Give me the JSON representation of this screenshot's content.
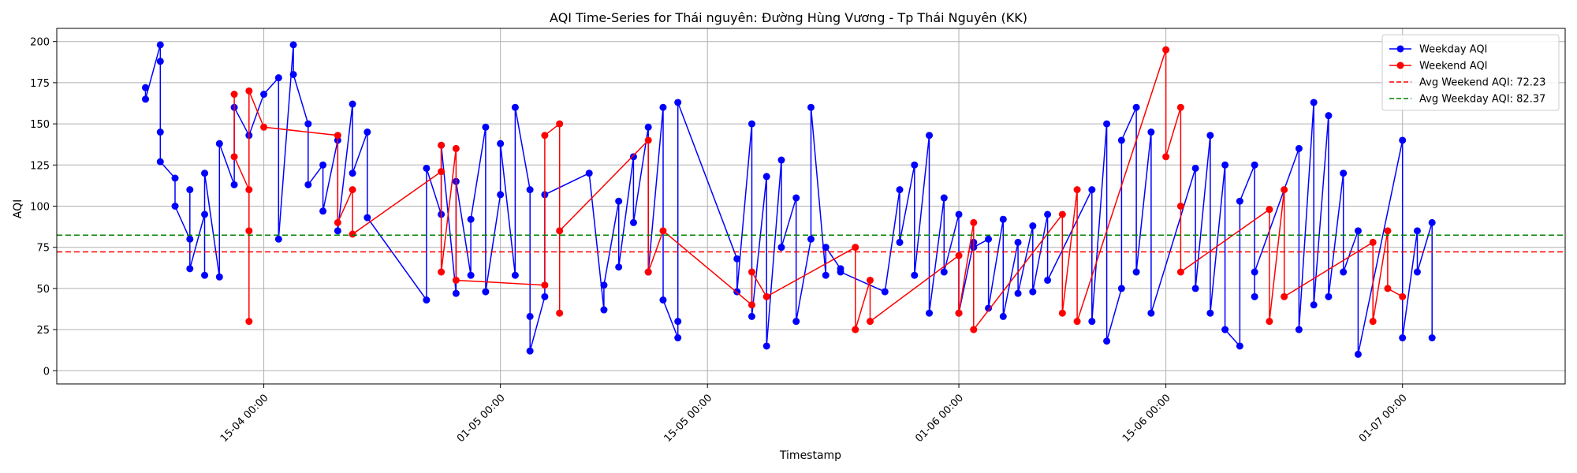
{
  "chart_data": {
    "type": "line",
    "title": "AQI Time-Series for Thái nguyên: Đường Hùng Vương - Tp Thái Nguyên (KK)",
    "xlabel": "Timestamp",
    "ylabel": "AQI",
    "xlim": [
      "2024-04-01",
      "2024-07-12"
    ],
    "ylim": [
      -8,
      208
    ],
    "x_ticks": [
      "15-04 00:00",
      "01-05 00:00",
      "15-05 00:00",
      "01-06 00:00",
      "15-06 00:00",
      "01-07 00:00"
    ],
    "x_tick_dates": [
      "2024-04-15",
      "2024-05-01",
      "2024-05-15",
      "2024-06-01",
      "2024-06-15",
      "2024-07-01"
    ],
    "y_ticks": [
      0,
      25,
      50,
      75,
      100,
      125,
      150,
      175,
      200
    ],
    "grid": true,
    "legend_position": "top-right",
    "series": [
      {
        "name": "Weekday AQI",
        "color": "#0000ff",
        "points": [
          [
            "2024-04-07",
            172
          ],
          [
            "2024-04-07",
            165
          ],
          [
            "2024-04-08",
            198
          ],
          [
            "2024-04-08",
            188
          ],
          [
            "2024-04-08",
            145
          ],
          [
            "2024-04-08",
            127
          ],
          [
            "2024-04-09",
            117
          ],
          [
            "2024-04-09",
            100
          ],
          [
            "2024-04-10",
            80
          ],
          [
            "2024-04-10",
            110
          ],
          [
            "2024-04-10",
            62
          ],
          [
            "2024-04-11",
            95
          ],
          [
            "2024-04-11",
            58
          ],
          [
            "2024-04-11",
            120
          ],
          [
            "2024-04-12",
            57
          ],
          [
            "2024-04-12",
            138
          ],
          [
            "2024-04-13",
            113
          ],
          [
            "2024-04-13",
            160
          ],
          [
            "2024-04-14",
            143
          ],
          [
            "2024-04-15",
            168
          ],
          [
            "2024-04-16",
            178
          ],
          [
            "2024-04-16",
            80
          ],
          [
            "2024-04-17",
            198
          ],
          [
            "2024-04-17",
            180
          ],
          [
            "2024-04-18",
            150
          ],
          [
            "2024-04-18",
            113
          ],
          [
            "2024-04-19",
            125
          ],
          [
            "2024-04-19",
            97
          ],
          [
            "2024-04-20",
            140
          ],
          [
            "2024-04-20",
            85
          ],
          [
            "2024-04-21",
            162
          ],
          [
            "2024-04-21",
            120
          ],
          [
            "2024-04-22",
            145
          ],
          [
            "2024-04-22",
            93
          ],
          [
            "2024-04-26",
            43
          ],
          [
            "2024-04-26",
            123
          ],
          [
            "2024-04-27",
            95
          ],
          [
            "2024-04-27",
            137
          ],
          [
            "2024-04-28",
            47
          ],
          [
            "2024-04-28",
            115
          ],
          [
            "2024-04-29",
            58
          ],
          [
            "2024-04-29",
            92
          ],
          [
            "2024-04-30",
            148
          ],
          [
            "2024-04-30",
            48
          ],
          [
            "2024-05-01",
            107
          ],
          [
            "2024-05-01",
            138
          ],
          [
            "2024-05-02",
            58
          ],
          [
            "2024-05-02",
            160
          ],
          [
            "2024-05-03",
            110
          ],
          [
            "2024-05-03",
            33
          ],
          [
            "2024-05-03",
            12
          ],
          [
            "2024-05-04",
            45
          ],
          [
            "2024-05-04",
            107
          ],
          [
            "2024-05-07",
            120
          ],
          [
            "2024-05-08",
            37
          ],
          [
            "2024-05-08",
            52
          ],
          [
            "2024-05-09",
            103
          ],
          [
            "2024-05-09",
            63
          ],
          [
            "2024-05-10",
            130
          ],
          [
            "2024-05-10",
            90
          ],
          [
            "2024-05-11",
            148
          ],
          [
            "2024-05-11",
            60
          ],
          [
            "2024-05-12",
            160
          ],
          [
            "2024-05-12",
            43
          ],
          [
            "2024-05-13",
            20
          ],
          [
            "2024-05-13",
            30
          ],
          [
            "2024-05-13",
            163
          ],
          [
            "2024-05-17",
            68
          ],
          [
            "2024-05-17",
            48
          ],
          [
            "2024-05-18",
            150
          ],
          [
            "2024-05-18",
            33
          ],
          [
            "2024-05-19",
            118
          ],
          [
            "2024-05-19",
            15
          ],
          [
            "2024-05-20",
            128
          ],
          [
            "2024-05-20",
            75
          ],
          [
            "2024-05-21",
            105
          ],
          [
            "2024-05-21",
            30
          ],
          [
            "2024-05-22",
            80
          ],
          [
            "2024-05-22",
            160
          ],
          [
            "2024-05-23",
            58
          ],
          [
            "2024-05-23",
            75
          ],
          [
            "2024-05-24",
            62
          ],
          [
            "2024-05-24",
            60
          ],
          [
            "2024-05-27",
            48
          ],
          [
            "2024-05-28",
            110
          ],
          [
            "2024-05-28",
            78
          ],
          [
            "2024-05-29",
            125
          ],
          [
            "2024-05-29",
            58
          ],
          [
            "2024-05-30",
            143
          ],
          [
            "2024-05-30",
            35
          ],
          [
            "2024-05-31",
            105
          ],
          [
            "2024-05-31",
            60
          ],
          [
            "2024-06-01",
            95
          ],
          [
            "2024-06-01",
            35
          ],
          [
            "2024-06-02",
            78
          ],
          [
            "2024-06-02",
            75
          ],
          [
            "2024-06-03",
            80
          ],
          [
            "2024-06-03",
            38
          ],
          [
            "2024-06-04",
            92
          ],
          [
            "2024-06-04",
            33
          ],
          [
            "2024-06-05",
            78
          ],
          [
            "2024-06-05",
            47
          ],
          [
            "2024-06-06",
            88
          ],
          [
            "2024-06-06",
            48
          ],
          [
            "2024-06-07",
            95
          ],
          [
            "2024-06-07",
            55
          ],
          [
            "2024-06-10",
            110
          ],
          [
            "2024-06-10",
            30
          ],
          [
            "2024-06-11",
            150
          ],
          [
            "2024-06-11",
            18
          ],
          [
            "2024-06-12",
            50
          ],
          [
            "2024-06-12",
            140
          ],
          [
            "2024-06-13",
            160
          ],
          [
            "2024-06-13",
            60
          ],
          [
            "2024-06-14",
            145
          ],
          [
            "2024-06-14",
            35
          ],
          [
            "2024-06-17",
            123
          ],
          [
            "2024-06-17",
            50
          ],
          [
            "2024-06-18",
            143
          ],
          [
            "2024-06-18",
            35
          ],
          [
            "2024-06-19",
            125
          ],
          [
            "2024-06-19",
            25
          ],
          [
            "2024-06-20",
            15
          ],
          [
            "2024-06-20",
            103
          ],
          [
            "2024-06-21",
            125
          ],
          [
            "2024-06-21",
            45
          ],
          [
            "2024-06-21",
            60
          ],
          [
            "2024-06-24",
            135
          ],
          [
            "2024-06-24",
            25
          ],
          [
            "2024-06-25",
            163
          ],
          [
            "2024-06-25",
            40
          ],
          [
            "2024-06-26",
            155
          ],
          [
            "2024-06-26",
            45
          ],
          [
            "2024-06-27",
            120
          ],
          [
            "2024-06-27",
            60
          ],
          [
            "2024-06-28",
            85
          ],
          [
            "2024-06-28",
            10
          ],
          [
            "2024-07-01",
            140
          ],
          [
            "2024-07-01",
            20
          ],
          [
            "2024-07-02",
            85
          ],
          [
            "2024-07-02",
            60
          ],
          [
            "2024-07-03",
            90
          ],
          [
            "2024-07-03",
            20
          ]
        ]
      },
      {
        "name": "Weekend AQI",
        "color": "#ff0000",
        "points": [
          [
            "2024-04-13",
            168
          ],
          [
            "2024-04-13",
            130
          ],
          [
            "2024-04-14",
            110
          ],
          [
            "2024-04-14",
            85
          ],
          [
            "2024-04-14",
            30
          ],
          [
            "2024-04-14",
            170
          ],
          [
            "2024-04-15",
            148
          ],
          [
            "2024-04-20",
            143
          ],
          [
            "2024-04-20",
            90
          ],
          [
            "2024-04-21",
            110
          ],
          [
            "2024-04-21",
            83
          ],
          [
            "2024-04-27",
            121
          ],
          [
            "2024-04-27",
            137
          ],
          [
            "2024-04-27",
            60
          ],
          [
            "2024-04-28",
            135
          ],
          [
            "2024-04-28",
            55
          ],
          [
            "2024-05-04",
            52
          ],
          [
            "2024-05-04",
            143
          ],
          [
            "2024-05-05",
            150
          ],
          [
            "2024-05-05",
            35
          ],
          [
            "2024-05-05",
            85
          ],
          [
            "2024-05-11",
            140
          ],
          [
            "2024-05-11",
            60
          ],
          [
            "2024-05-12",
            85
          ],
          [
            "2024-05-18",
            40
          ],
          [
            "2024-05-18",
            60
          ],
          [
            "2024-05-19",
            45
          ],
          [
            "2024-05-25",
            75
          ],
          [
            "2024-05-25",
            25
          ],
          [
            "2024-05-26",
            55
          ],
          [
            "2024-05-26",
            30
          ],
          [
            "2024-06-01",
            70
          ],
          [
            "2024-06-01",
            35
          ],
          [
            "2024-06-02",
            90
          ],
          [
            "2024-06-02",
            25
          ],
          [
            "2024-06-08",
            95
          ],
          [
            "2024-06-08",
            35
          ],
          [
            "2024-06-09",
            110
          ],
          [
            "2024-06-09",
            30
          ],
          [
            "2024-06-15",
            195
          ],
          [
            "2024-06-15",
            130
          ],
          [
            "2024-06-16",
            160
          ],
          [
            "2024-06-16",
            100
          ],
          [
            "2024-06-16",
            60
          ],
          [
            "2024-06-22",
            98
          ],
          [
            "2024-06-22",
            30
          ],
          [
            "2024-06-23",
            110
          ],
          [
            "2024-06-23",
            45
          ],
          [
            "2024-06-29",
            78
          ],
          [
            "2024-06-29",
            30
          ],
          [
            "2024-06-30",
            85
          ],
          [
            "2024-06-30",
            50
          ],
          [
            "2024-07-01",
            45
          ]
        ]
      },
      {
        "name": "Avg Weekend AQI: 72.23",
        "color": "#ff0000",
        "y_constant": 72.23
      },
      {
        "name": "Avg Weekday AQI: 82.37",
        "color": "#008000",
        "y_constant": 82.37
      }
    ]
  }
}
